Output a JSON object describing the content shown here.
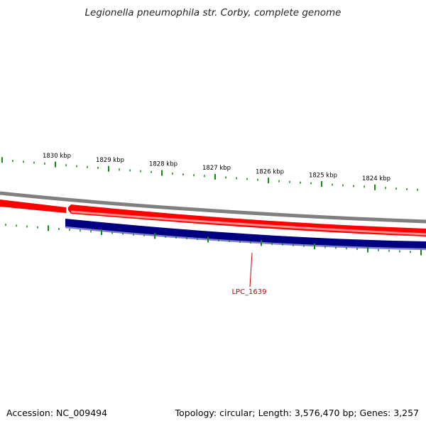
{
  "title": "Legionella pneumophila str. Corby, complete genome",
  "accession": "Accession: NC_009494",
  "summary": "Topology: circular; Length: 3,576,470 bp; Genes: 3,257",
  "kbp_labels": [
    "1830 kbp",
    "1829 kbp",
    "1828 kbp",
    "1827 kbp",
    "1826 kbp",
    "1825 kbp",
    "1824 kbp"
  ],
  "gene_label": "LPC_1639",
  "colors": {
    "backbone": "#808080",
    "forward_strand": "#ff0000",
    "reverse_strand": "#000080",
    "ticks": "#138a13",
    "gene_label": "#cc0000",
    "text": "#000000"
  }
}
